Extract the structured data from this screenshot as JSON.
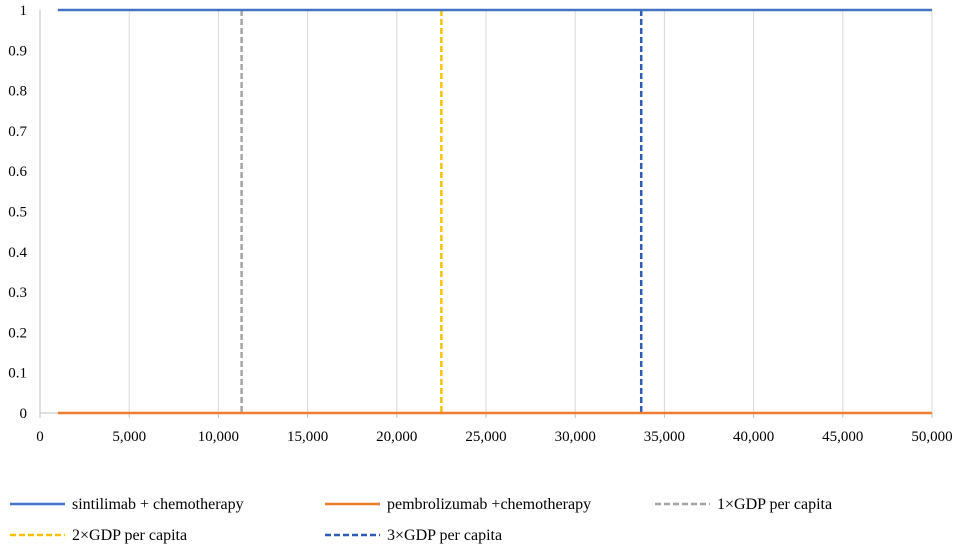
{
  "chart_data": {
    "type": "line",
    "title": "",
    "xlabel": "",
    "ylabel": "",
    "xlim": [
      0,
      50000
    ],
    "ylim": [
      0,
      1
    ],
    "x_ticks": [
      0,
      5000,
      10000,
      15000,
      20000,
      25000,
      30000,
      35000,
      40000,
      45000,
      50000
    ],
    "x_tick_labels": [
      "0",
      "5,000",
      "10,000",
      "15,000",
      "20,000",
      "25,000",
      "30,000",
      "35,000",
      "40,000",
      "45,000",
      "50,000"
    ],
    "y_ticks": [
      0,
      0.1,
      0.2,
      0.3,
      0.4,
      0.5,
      0.6,
      0.7,
      0.8,
      0.9,
      1
    ],
    "y_tick_labels": [
      "0",
      "0.1",
      "0.2",
      "0.3",
      "0.4",
      "0.5",
      "0.6",
      "0.7",
      "0.8",
      "0.9",
      "1"
    ],
    "grid": {
      "vertical": true,
      "horizontal": false
    },
    "legend_position": "bottom",
    "series": [
      {
        "name": "sintilimab + chemotherapy",
        "x": [
          1000,
          50000
        ],
        "y": [
          1,
          1
        ],
        "color": "#4472C4",
        "dashed": false
      },
      {
        "name": "pembrolizumab +chemotherapy",
        "x": [
          1000,
          50000
        ],
        "y": [
          0,
          0
        ],
        "color": "#ED7D31",
        "dashed": false
      }
    ],
    "reference_lines": [
      {
        "name": "1×GDP per capita",
        "x": 11300,
        "color": "#A5A5A5",
        "dashed": true
      },
      {
        "name": "2×GDP per capita",
        "x": 22500,
        "color": "#FFC000",
        "dashed": true
      },
      {
        "name": "3×GDP per capita",
        "x": 33700,
        "color": "#2F5BB7",
        "dashed": true
      }
    ]
  }
}
